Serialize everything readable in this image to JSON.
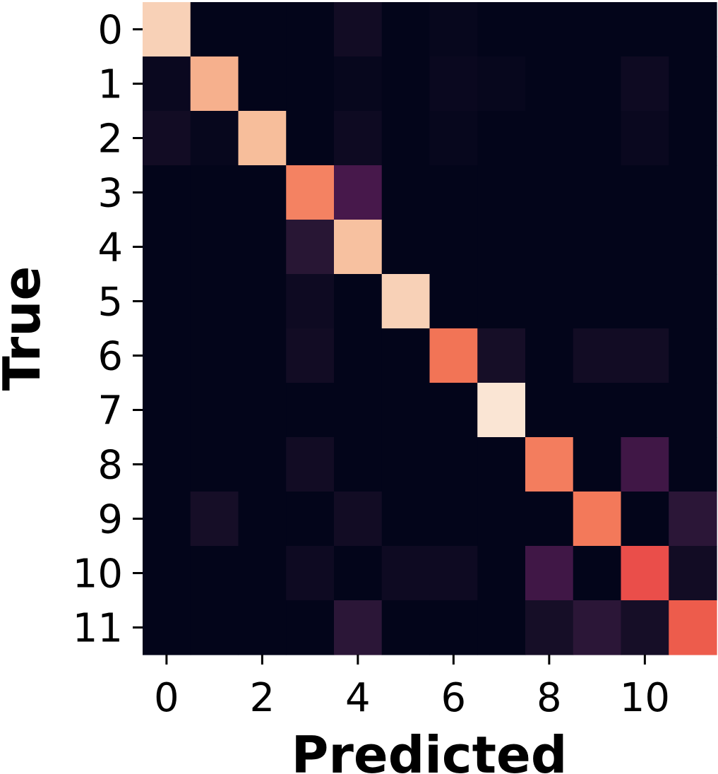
{
  "chart_data": {
    "type": "heatmap",
    "title": "",
    "xlabel": "Predicted",
    "ylabel": "True",
    "x_ticks": [
      "0",
      "2",
      "4",
      "6",
      "8",
      "10"
    ],
    "x_tick_indices": [
      0,
      2,
      4,
      6,
      8,
      10
    ],
    "y_ticks": [
      "0",
      "1",
      "2",
      "3",
      "4",
      "5",
      "6",
      "7",
      "8",
      "9",
      "10",
      "11"
    ],
    "y_tick_indices": [
      0,
      1,
      2,
      3,
      4,
      5,
      6,
      7,
      8,
      9,
      10,
      11
    ],
    "colormap": "rocket",
    "value_range": [
      0,
      1
    ],
    "matrix": [
      [
        0.92,
        0.0,
        0.0,
        0.0,
        0.04,
        0.0,
        0.01,
        0.0,
        0.0,
        0.0,
        0.0,
        0.0
      ],
      [
        0.02,
        0.83,
        0.0,
        0.0,
        0.01,
        0.0,
        0.02,
        0.01,
        0.0,
        0.0,
        0.03,
        0.0
      ],
      [
        0.04,
        0.01,
        0.86,
        0.0,
        0.03,
        0.0,
        0.01,
        0.0,
        0.0,
        0.0,
        0.02,
        0.0
      ],
      [
        0.0,
        0.0,
        0.0,
        0.73,
        0.19,
        0.0,
        0.0,
        0.0,
        0.0,
        0.0,
        0.0,
        0.0
      ],
      [
        0.0,
        0.0,
        0.0,
        0.1,
        0.87,
        0.0,
        0.0,
        0.0,
        0.0,
        0.0,
        0.0,
        0.0
      ],
      [
        0.0,
        0.0,
        0.0,
        0.03,
        0.0,
        0.92,
        0.0,
        0.0,
        0.0,
        0.0,
        0.0,
        0.0
      ],
      [
        0.0,
        0.0,
        0.0,
        0.04,
        0.0,
        0.0,
        0.7,
        0.05,
        0.0,
        0.04,
        0.04,
        0.0
      ],
      [
        0.0,
        0.0,
        0.0,
        0.0,
        0.0,
        0.0,
        0.0,
        0.98,
        0.0,
        0.0,
        0.0,
        0.0
      ],
      [
        0.0,
        0.0,
        0.0,
        0.04,
        0.0,
        0.0,
        0.0,
        0.0,
        0.72,
        0.0,
        0.17,
        0.0
      ],
      [
        0.0,
        0.05,
        0.0,
        0.0,
        0.04,
        0.0,
        0.0,
        0.0,
        0.0,
        0.71,
        0.0,
        0.11
      ],
      [
        0.0,
        0.0,
        0.0,
        0.03,
        0.0,
        0.03,
        0.03,
        0.0,
        0.17,
        0.0,
        0.62,
        0.04
      ],
      [
        0.0,
        0.0,
        0.0,
        0.0,
        0.11,
        0.0,
        0.0,
        0.0,
        0.05,
        0.11,
        0.05,
        0.65
      ]
    ]
  }
}
